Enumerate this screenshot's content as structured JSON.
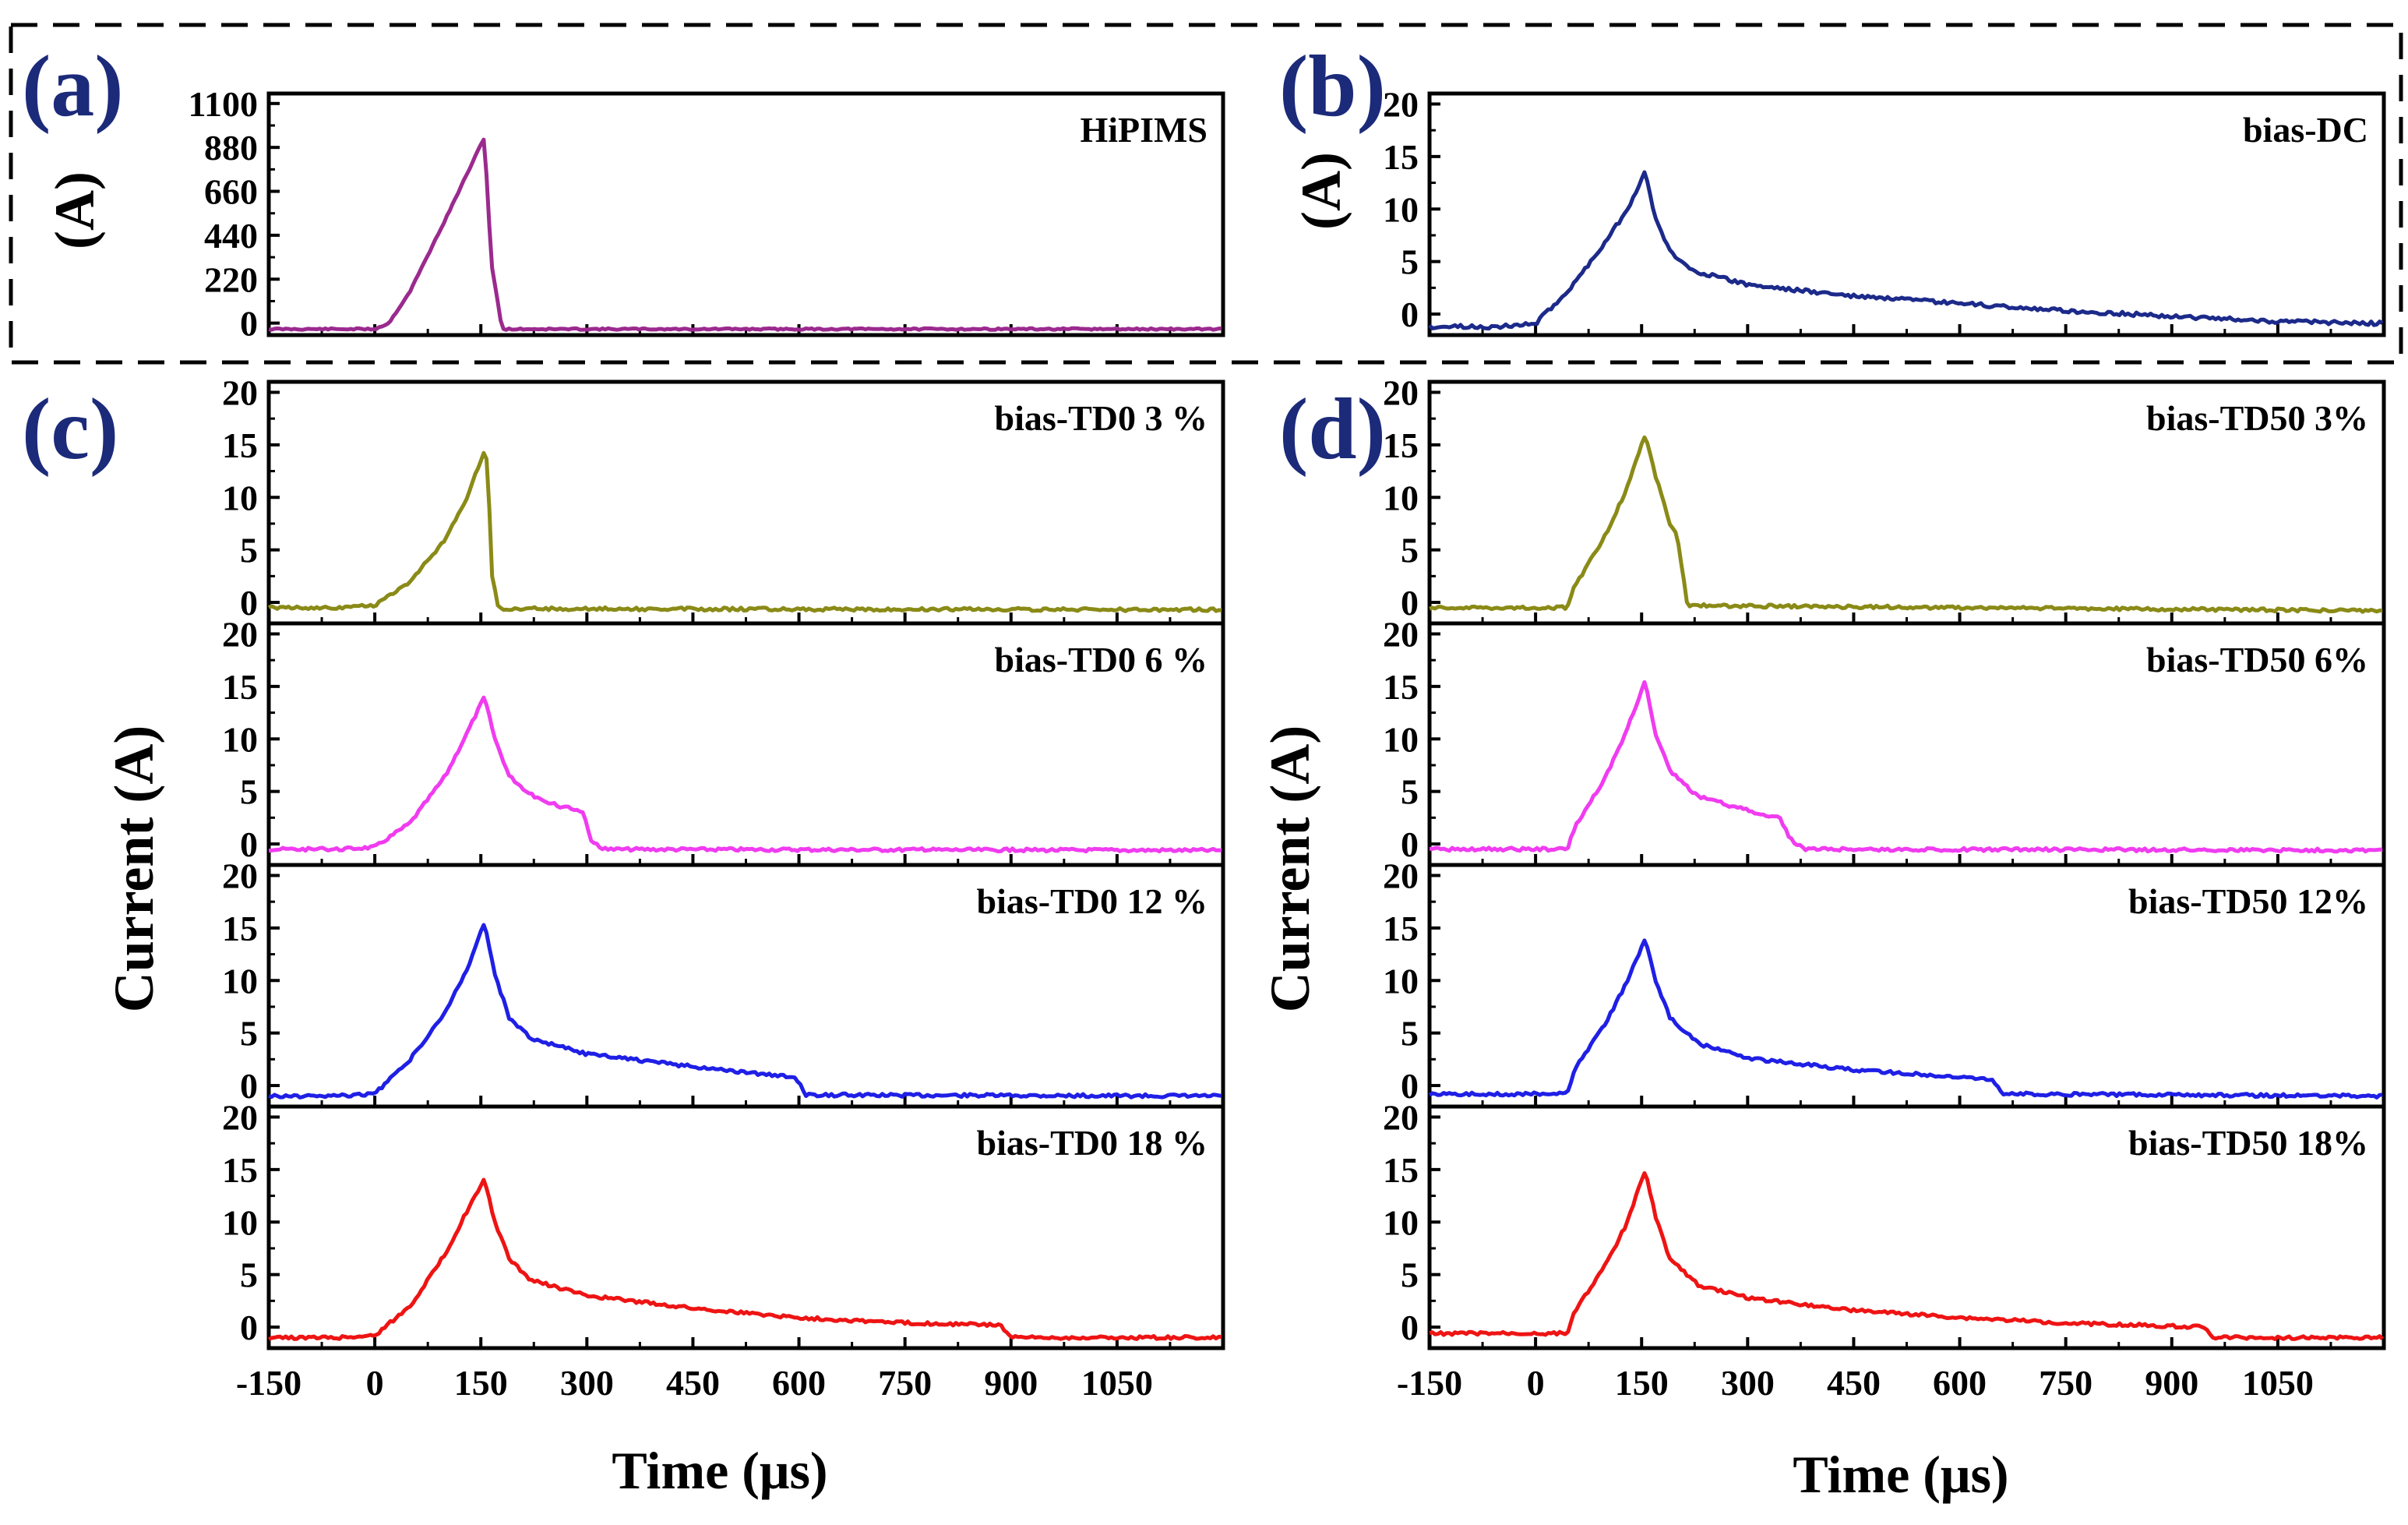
{
  "chart_data": [
    {
      "panel": "(a)",
      "type": "line",
      "title": "",
      "label": "HiPIMS",
      "color": "#9b2a8e",
      "ylabel": "(A)",
      "xlabel": "",
      "ylim": [
        -60,
        1150
      ],
      "yticks": [
        "0",
        "220",
        "440",
        "660",
        "880",
        "1100"
      ],
      "x": [
        -150,
        0,
        20,
        50,
        100,
        155,
        165,
        180,
        1200
      ],
      "y": [
        -30,
        -30,
        0,
        160,
        520,
        930,
        300,
        -30,
        -30
      ]
    },
    {
      "panel": "(b)",
      "type": "line",
      "title": "",
      "label": "bias-DC",
      "color": "#1c2a8a",
      "ylabel": "(A)",
      "xlabel": "",
      "ylim": [
        -2,
        21
      ],
      "yticks": [
        "0",
        "5",
        "10",
        "15",
        "20"
      ],
      "x": [
        -150,
        -50,
        0,
        50,
        100,
        130,
        155,
        170,
        190,
        220,
        300,
        450,
        600,
        750,
        900,
        1050,
        1200
      ],
      "y": [
        -1.2,
        -1.2,
        -0.9,
        2.5,
        7,
        10,
        13.5,
        9,
        6,
        4.2,
        2.8,
        1.7,
        1.0,
        0.3,
        -0.2,
        -0.7,
        -0.9
      ]
    },
    {
      "panel": "(c)",
      "type": "line",
      "ylabel": "Current (A)",
      "xlabel": "Time (μs)",
      "xticks": [
        "-150",
        "0",
        "150",
        "300",
        "450",
        "600",
        "750",
        "900",
        "1050"
      ],
      "yticks": [
        "0",
        "5",
        "10",
        "15",
        "20"
      ],
      "ylim": [
        -2,
        21
      ],
      "series": [
        {
          "name": "bias-TD0 3 %",
          "color": "#8a8a17",
          "x": [
            -150,
            -50,
            0,
            50,
            100,
            130,
            155,
            160,
            165,
            175,
            1200
          ],
          "y": [
            -0.5,
            -0.5,
            -0.3,
            2,
            6,
            10,
            14.5,
            13,
            3,
            -0.6,
            -0.7
          ]
        },
        {
          "name": "bias-TD0 6 %",
          "color": "#f03cf0",
          "x": [
            -150,
            -50,
            0,
            50,
            100,
            130,
            155,
            170,
            190,
            220,
            260,
            295,
            305,
            320,
            1200
          ],
          "y": [
            -0.5,
            -0.5,
            -0.3,
            2,
            6.5,
            10.5,
            14,
            10,
            6.5,
            4.7,
            3.6,
            3.1,
            0.5,
            -0.5,
            -0.6
          ]
        },
        {
          "name": "bias-TD0 12 %",
          "color": "#1f1fe6",
          "x": [
            -150,
            -50,
            0,
            50,
            100,
            130,
            155,
            170,
            190,
            220,
            300,
            400,
            500,
            595,
            610,
            1200
          ],
          "y": [
            -1.0,
            -1.0,
            -0.8,
            2.5,
            7,
            11,
            15.5,
            10.5,
            6.5,
            4.5,
            3.0,
            2.2,
            1.4,
            0.8,
            -0.9,
            -1.0
          ]
        },
        {
          "name": "bias-TD0 18 %",
          "color": "#ee1414",
          "x": [
            -150,
            -50,
            0,
            50,
            100,
            130,
            155,
            170,
            190,
            220,
            300,
            450,
            600,
            750,
            885,
            900,
            1200
          ],
          "y": [
            -1.0,
            -1.0,
            -0.8,
            2,
            7,
            11,
            14,
            10,
            6.5,
            4.5,
            3.0,
            1.8,
            0.9,
            0.4,
            0.2,
            -1.0,
            -1.0
          ]
        }
      ]
    },
    {
      "panel": "(d)",
      "type": "line",
      "ylabel": "Current (A)",
      "xlabel": "Time (μs)",
      "xticks": [
        "-150",
        "0",
        "150",
        "300",
        "450",
        "600",
        "750",
        "900",
        "1050"
      ],
      "yticks": [
        "0",
        "5",
        "10",
        "15",
        "20"
      ],
      "ylim": [
        -2,
        21
      ],
      "series": [
        {
          "name": "bias-TD50 3%",
          "color": "#8a8a17",
          "x": [
            -150,
            45,
            55,
            100,
            130,
            155,
            170,
            190,
            200,
            215,
            1200
          ],
          "y": [
            -0.5,
            -0.5,
            1.5,
            6.5,
            11,
            16,
            12,
            7.5,
            6.5,
            -0.3,
            -0.8
          ]
        },
        {
          "name": "bias-TD50 6%",
          "color": "#f03cf0",
          "x": [
            -150,
            45,
            55,
            100,
            130,
            155,
            170,
            190,
            230,
            300,
            345,
            360,
            380,
            1200
          ],
          "y": [
            -0.5,
            -0.5,
            1.5,
            6.5,
            11,
            15.5,
            10.5,
            7,
            4.5,
            3.2,
            2.5,
            0.5,
            -0.5,
            -0.6
          ]
        },
        {
          "name": "bias-TD50 12%",
          "color": "#1f1fe6",
          "x": [
            -150,
            45,
            55,
            100,
            130,
            155,
            170,
            190,
            230,
            300,
            450,
            600,
            645,
            660,
            1200
          ],
          "y": [
            -0.8,
            -0.8,
            1.5,
            6,
            10,
            14,
            10,
            6.5,
            4,
            2.6,
            1.5,
            0.8,
            0.6,
            -0.8,
            -1.0
          ]
        },
        {
          "name": "bias-TD50 18%",
          "color": "#ee1414",
          "x": [
            -150,
            45,
            55,
            100,
            130,
            155,
            170,
            190,
            230,
            300,
            450,
            600,
            750,
            900,
            945,
            960,
            1200
          ],
          "y": [
            -0.6,
            -0.6,
            1.5,
            6,
            10,
            15,
            10.5,
            6.5,
            4,
            2.8,
            1.6,
            0.9,
            0.4,
            0.1,
            0.0,
            -1.0,
            -1.0
          ]
        }
      ]
    }
  ]
}
